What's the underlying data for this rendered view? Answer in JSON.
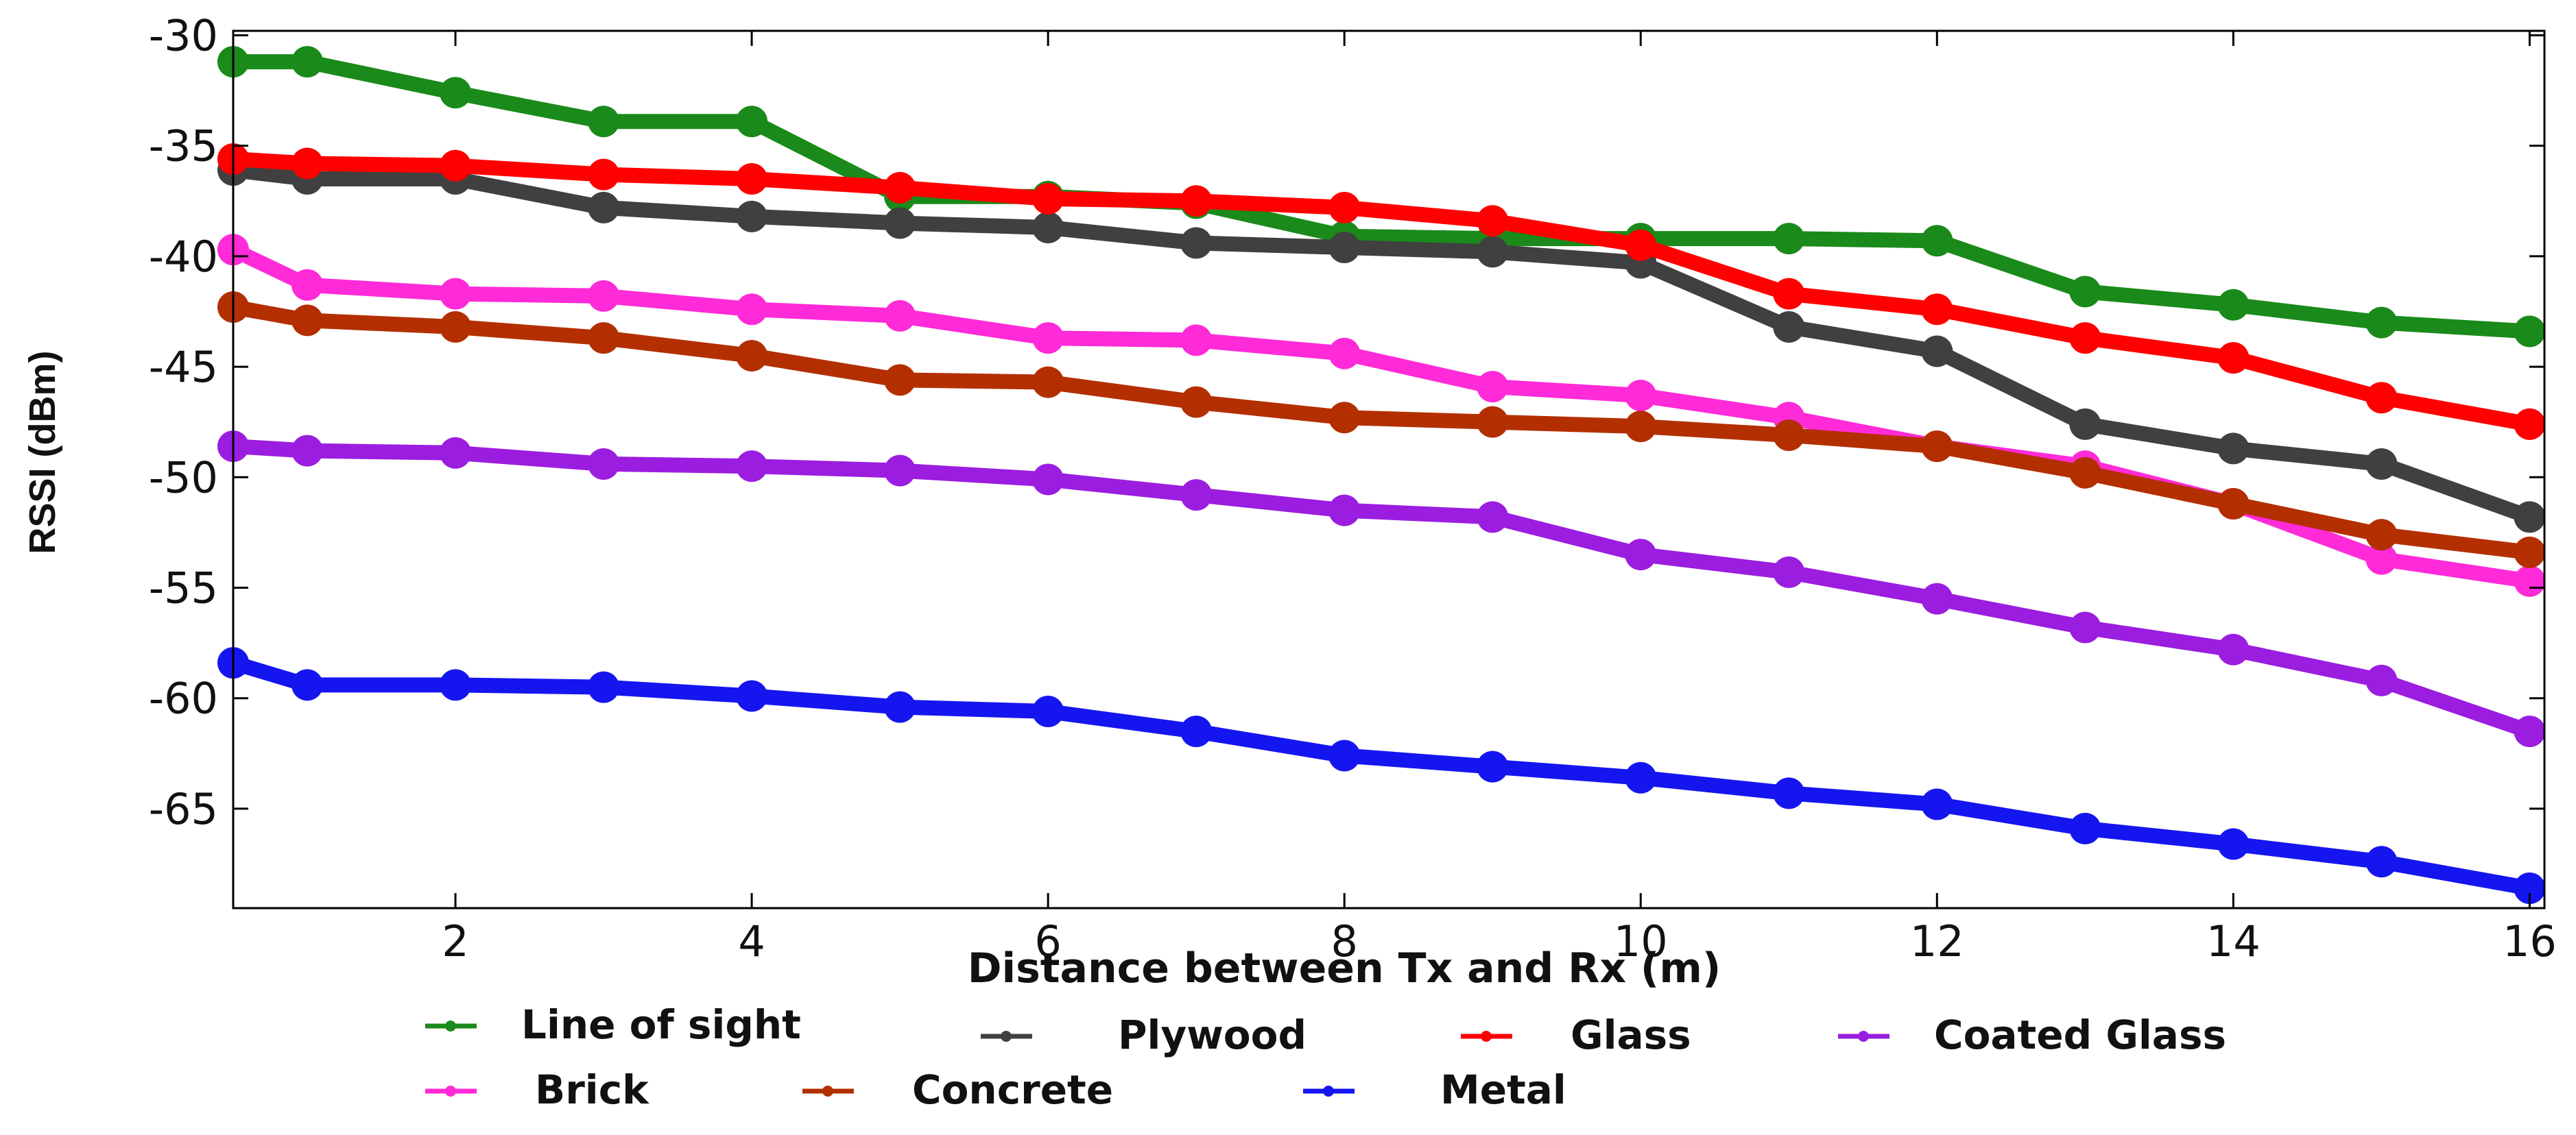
{
  "chart_data": {
    "type": "line",
    "title": "",
    "xlabel": "Distance between Tx and Rx (m)",
    "ylabel": "RSSI (dBm)",
    "xlim": [
      0.5,
      16.1
    ],
    "ylim": [
      -69.5,
      -29.8
    ],
    "xticks": [
      2,
      4,
      6,
      8,
      10,
      12,
      14,
      16
    ],
    "yticks": [
      -30,
      -35,
      -40,
      -45,
      -50,
      -55,
      -60,
      -65
    ],
    "x": [
      0.5,
      1,
      2,
      3,
      4,
      5,
      6,
      7,
      8,
      9,
      10,
      11,
      12,
      13,
      14,
      15,
      16
    ],
    "series": [
      {
        "name": "Line of sight",
        "color": "#1a8a1a",
        "values": [
          -31.2,
          -31.2,
          -32.6,
          -33.9,
          -33.9,
          -37.3,
          -37.3,
          -37.6,
          -39.1,
          -39.2,
          -39.2,
          -39.2,
          -39.3,
          -41.6,
          -42.2,
          -43.0,
          -43.4
        ]
      },
      {
        "name": "Plywood",
        "color": "#404040",
        "values": [
          -36.1,
          -36.5,
          -36.5,
          -37.8,
          -38.2,
          -38.5,
          -38.7,
          -39.4,
          -39.6,
          -39.8,
          -40.3,
          -43.2,
          -44.3,
          -47.6,
          -48.7,
          -49.4,
          -51.8
        ]
      },
      {
        "name": "Glass",
        "color": "#ff0000",
        "values": [
          -35.6,
          -35.8,
          -35.9,
          -36.3,
          -36.5,
          -36.9,
          -37.4,
          -37.5,
          -37.8,
          -38.4,
          -39.5,
          -41.7,
          -42.4,
          -43.7,
          -44.6,
          -46.4,
          -47.6
        ]
      },
      {
        "name": "Coated Glass",
        "color": "#9b1de0",
        "values": [
          -48.6,
          -48.8,
          -48.9,
          -49.4,
          -49.5,
          -49.7,
          -50.1,
          -50.8,
          -51.5,
          -51.8,
          -53.5,
          -54.3,
          -55.5,
          -56.8,
          -57.8,
          -59.2,
          -61.5
        ]
      },
      {
        "name": "Brick",
        "color": "#ff2ad8",
        "values": [
          -39.7,
          -41.3,
          -41.7,
          -41.8,
          -42.4,
          -42.7,
          -43.7,
          -43.8,
          -44.4,
          -45.9,
          -46.3,
          -47.3,
          -48.6,
          -49.5,
          -51.2,
          -53.7,
          -54.7
        ]
      },
      {
        "name": "Concrete",
        "color": "#b32f00",
        "values": [
          -42.3,
          -42.9,
          -43.2,
          -43.7,
          -44.5,
          -45.6,
          -45.7,
          -46.6,
          -47.3,
          -47.5,
          -47.7,
          -48.1,
          -48.6,
          -49.8,
          -51.2,
          -52.6,
          -53.4
        ]
      },
      {
        "name": "Metal",
        "color": "#1515f0",
        "values": [
          -58.4,
          -59.4,
          -59.4,
          -59.5,
          -59.9,
          -60.4,
          -60.6,
          -61.5,
          -62.6,
          -63.1,
          -63.6,
          -64.3,
          -64.8,
          -65.9,
          -66.6,
          -67.4,
          -68.6
        ]
      }
    ],
    "legend_position": "bottom"
  }
}
